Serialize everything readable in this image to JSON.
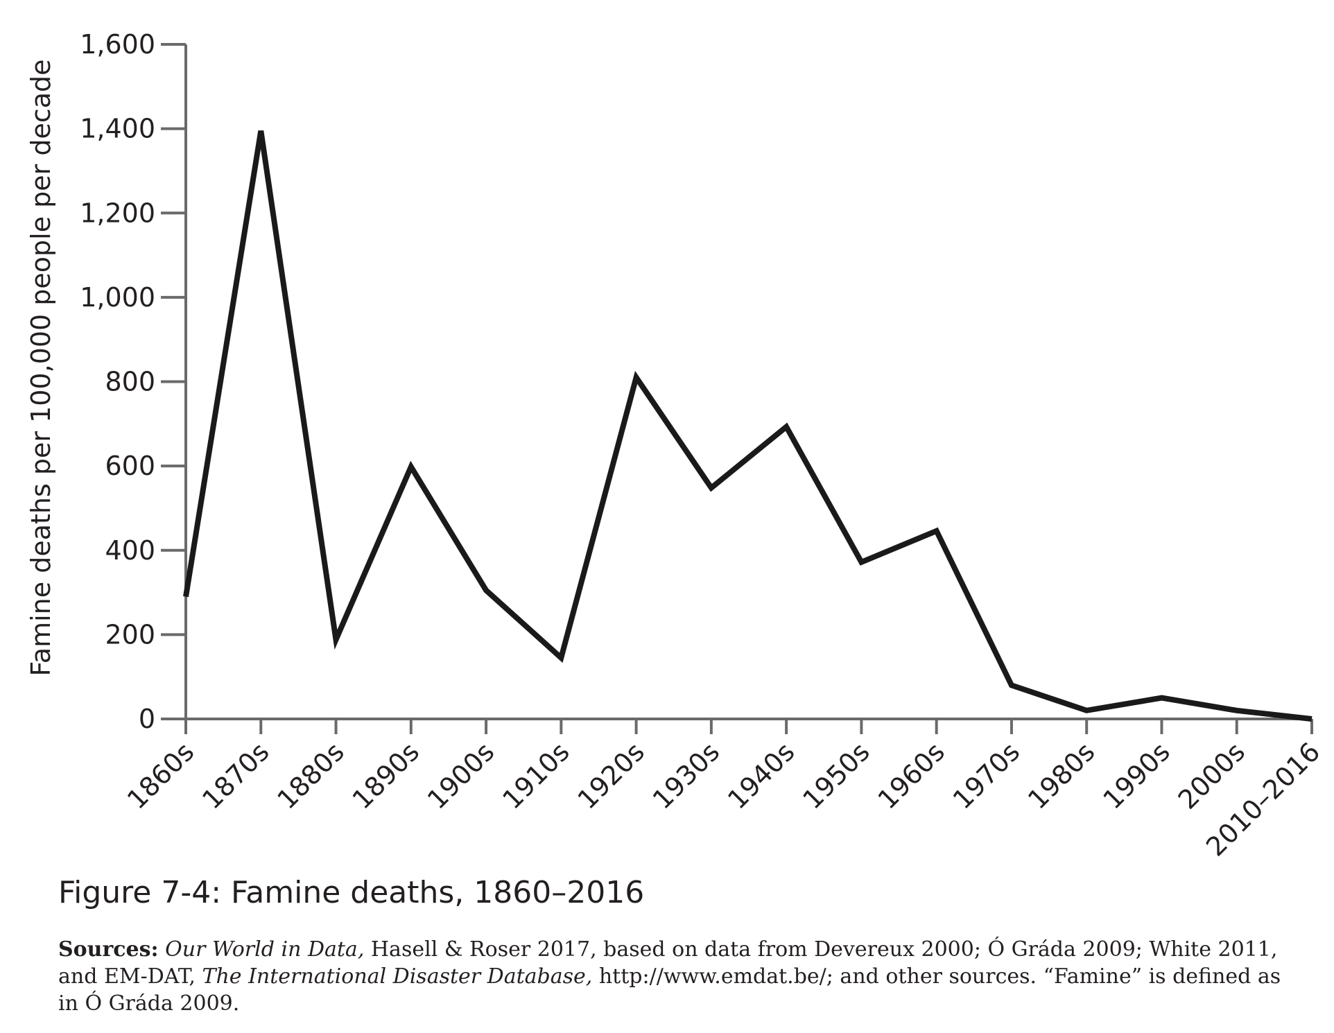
{
  "chart_data": {
    "type": "line",
    "title": "",
    "xlabel": "",
    "ylabel": "Famine deaths per 100,000 people per decade",
    "categories": [
      "1860s",
      "1870s",
      "1880s",
      "1890s",
      "1900s",
      "1910s",
      "1920s",
      "1930s",
      "1940s",
      "1950s",
      "1960s",
      "1970s",
      "1980s",
      "1990s",
      "2000s",
      "2010–2016"
    ],
    "series": [
      {
        "values": [
          290,
          1395,
          188,
          598,
          305,
          145,
          810,
          548,
          693,
          372,
          446,
          80,
          20,
          50,
          20,
          0
        ]
      }
    ],
    "ylim": [
      0,
      1600
    ],
    "yticks": [
      0,
      200,
      400,
      600,
      800,
      1000,
      1200,
      1400,
      1600
    ],
    "ytick_labels": [
      "0",
      "200",
      "400",
      "600",
      "800",
      "1,000",
      "1,200",
      "1,400",
      "1,600"
    ],
    "grid": false,
    "line_color": "#1a1a1a"
  },
  "figure": {
    "caption": "Figure 7-4: Famine deaths, 1860–2016",
    "sources_label": "Sources:",
    "sources_parts": [
      {
        "text": "Our World in Data,",
        "style": "italic"
      },
      {
        "text": " Hasell & Roser 2017, based on data from Devereux 2000; Ó Gráda 2009; White 2011, and EM-DAT, ",
        "style": "normal"
      },
      {
        "text": "The International Disaster Database,",
        "style": "italic"
      },
      {
        "text": " http://www.emdat.be/; and other sources. “Famine” is defined as in Ó Gráda 2009.",
        "style": "normal"
      }
    ]
  }
}
